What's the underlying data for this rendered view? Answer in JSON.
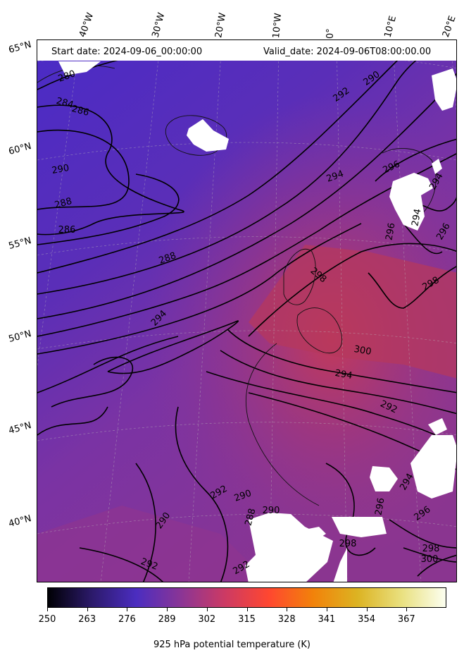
{
  "header": {
    "start_date": "Start date: 2024-09-06_00:00:00",
    "valid_date": "Valid_date: 2024-09-06T08:00:00.00"
  },
  "longitude_labels": [
    "40°W",
    "30°W",
    "20°W",
    "10°W",
    "0°",
    "10°E",
    "20°E"
  ],
  "latitude_labels": [
    "65°N",
    "60°N",
    "55°N",
    "50°N",
    "45°N",
    "40°N"
  ],
  "contour_labels": [
    "280",
    "284",
    "286",
    "290",
    "288",
    "286",
    "288",
    "292",
    "294",
    "294",
    "290",
    "290",
    "290",
    "292",
    "296",
    "294",
    "296",
    "294",
    "296",
    "298",
    "300",
    "294",
    "292",
    "292",
    "294",
    "296",
    "298",
    "298",
    "300",
    "290",
    "288",
    "296",
    "292",
    "298"
  ],
  "colorbar": {
    "ticks": [
      "250",
      "263",
      "276",
      "289",
      "302",
      "315",
      "328",
      "341",
      "354",
      "367"
    ],
    "label": "925 hPa potential temperature (K)",
    "colors": [
      "#000004",
      "#2c1a6b",
      "#4b2dc0",
      "#8a3596",
      "#cc3a64",
      "#ff4730",
      "#f2820a",
      "#dcb322",
      "#e9e07f",
      "#fcfff0"
    ]
  },
  "colors": {
    "field_cold": "#4b2cc4",
    "field_mid": "#7f339f",
    "field_warm": "#c23a5c",
    "missing": "#ffffff",
    "contour": "#000000"
  }
}
